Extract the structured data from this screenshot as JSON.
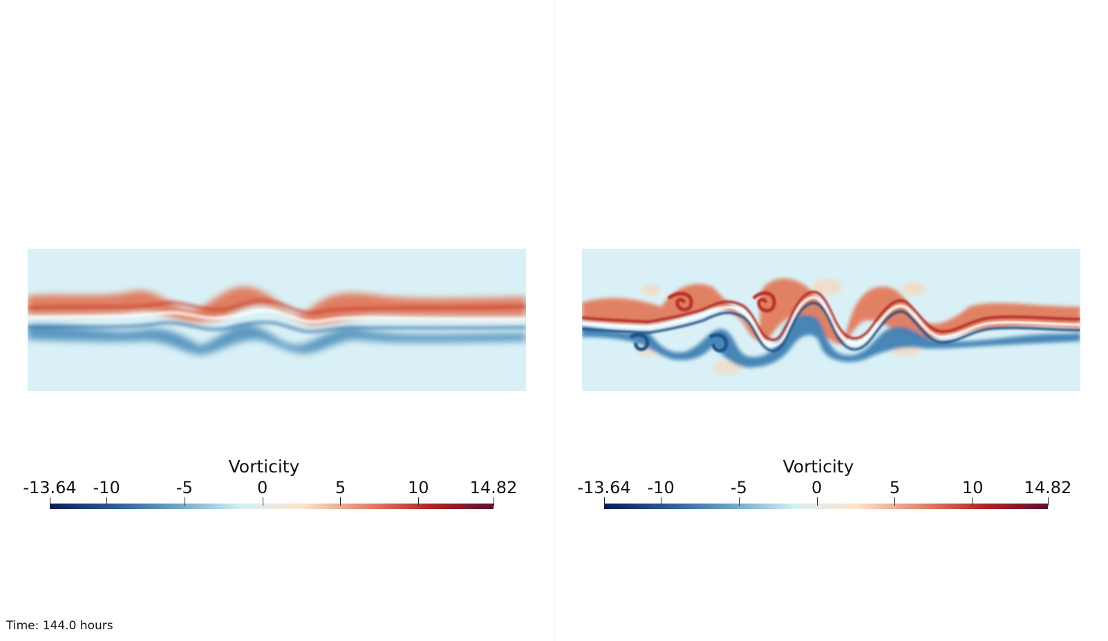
{
  "panels": [
    {
      "id": "left",
      "colorbar": {
        "title": "Vorticity",
        "ticks": [
          "-13.64",
          "-10",
          "-5",
          "0",
          "5",
          "10",
          "14.82"
        ]
      }
    },
    {
      "id": "right",
      "colorbar": {
        "title": "Vorticity",
        "ticks": [
          "-13.64",
          "-10",
          "-5",
          "0",
          "5",
          "10",
          "14.82"
        ]
      }
    }
  ],
  "colormap": {
    "range": [
      -13.64,
      14.82
    ],
    "tick_values": [
      -13.64,
      -10,
      -5,
      0,
      5,
      10,
      14.82
    ],
    "stops": [
      "#0a1a5c",
      "#2b5c93",
      "#6aa4c8",
      "#d4f0f5",
      "#fbe3cc",
      "#e4856a",
      "#b32320",
      "#5e0f33"
    ]
  },
  "time_label": "Time: 144.0 hours"
}
